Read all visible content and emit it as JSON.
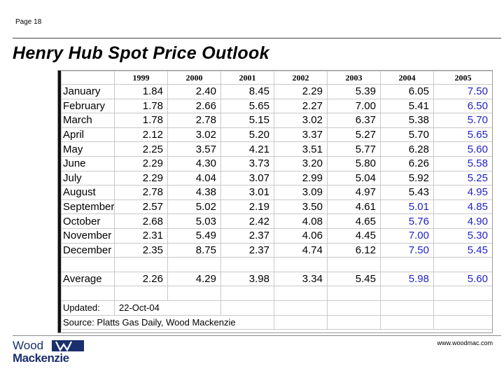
{
  "header": {
    "page_label": "Page 18",
    "title": "Henry Hub Spot Price Outlook"
  },
  "table": {
    "years": [
      "1999",
      "2000",
      "2001",
      "2002",
      "2003",
      "2004",
      "2005"
    ],
    "rows": [
      {
        "month": "January",
        "values": [
          "1.84",
          "2.40",
          "8.45",
          "2.29",
          "5.39",
          "6.05",
          "7.50"
        ],
        "blue": [
          false,
          false,
          false,
          false,
          false,
          false,
          true
        ]
      },
      {
        "month": "February",
        "values": [
          "1.78",
          "2.66",
          "5.65",
          "2.27",
          "7.00",
          "5.41",
          "6.50"
        ],
        "blue": [
          false,
          false,
          false,
          false,
          false,
          false,
          true
        ]
      },
      {
        "month": "March",
        "values": [
          "1.78",
          "2.78",
          "5.15",
          "3.02",
          "6.37",
          "5.38",
          "5.70"
        ],
        "blue": [
          false,
          false,
          false,
          false,
          false,
          false,
          true
        ]
      },
      {
        "month": "April",
        "values": [
          "2.12",
          "3.02",
          "5.20",
          "3.37",
          "5.27",
          "5.70",
          "5.65"
        ],
        "blue": [
          false,
          false,
          false,
          false,
          false,
          false,
          true
        ]
      },
      {
        "month": "May",
        "values": [
          "2.25",
          "3.57",
          "4.21",
          "3.51",
          "5.77",
          "6.28",
          "5.60"
        ],
        "blue": [
          false,
          false,
          false,
          false,
          false,
          false,
          true
        ]
      },
      {
        "month": "June",
        "values": [
          "2.29",
          "4.30",
          "3.73",
          "3.20",
          "5.80",
          "6.26",
          "5.58"
        ],
        "blue": [
          false,
          false,
          false,
          false,
          false,
          false,
          true
        ]
      },
      {
        "month": "July",
        "values": [
          "2.29",
          "4.04",
          "3.07",
          "2.99",
          "5.04",
          "5.92",
          "5.25"
        ],
        "blue": [
          false,
          false,
          false,
          false,
          false,
          false,
          true
        ]
      },
      {
        "month": "August",
        "values": [
          "2.78",
          "4.38",
          "3.01",
          "3.09",
          "4.97",
          "5.43",
          "4.95"
        ],
        "blue": [
          false,
          false,
          false,
          false,
          false,
          false,
          true
        ]
      },
      {
        "month": "September",
        "values": [
          "2.57",
          "5.02",
          "2.19",
          "3.50",
          "4.61",
          "5.01",
          "4.85"
        ],
        "blue": [
          false,
          false,
          false,
          false,
          false,
          true,
          true
        ]
      },
      {
        "month": "October",
        "values": [
          "2.68",
          "5.03",
          "2.42",
          "4.08",
          "4.65",
          "5.76",
          "4.90"
        ],
        "blue": [
          false,
          false,
          false,
          false,
          false,
          true,
          true
        ]
      },
      {
        "month": "November",
        "values": [
          "2.31",
          "5.49",
          "2.37",
          "4.06",
          "4.45",
          "7.00",
          "5.30"
        ],
        "blue": [
          false,
          false,
          false,
          false,
          false,
          true,
          true
        ]
      },
      {
        "month": "December",
        "values": [
          "2.35",
          "8.75",
          "2.37",
          "4.74",
          "6.12",
          "7.50",
          "5.45"
        ],
        "blue": [
          false,
          false,
          false,
          false,
          false,
          true,
          true
        ]
      }
    ],
    "average": {
      "label": "Average",
      "values": [
        "2.26",
        "4.29",
        "3.98",
        "3.34",
        "5.45",
        "5.98",
        "5.60"
      ],
      "blue": [
        false,
        false,
        false,
        false,
        false,
        true,
        true
      ]
    },
    "updated_label": "Updated:",
    "updated_date": "22-Oct-04",
    "source": "Source: Platts Gas Daily, Wood Mackenzie"
  },
  "footer": {
    "logo_word1": "Wood",
    "logo_word2": "Mackenzie",
    "url": "www.woodmac.com",
    "brand_color": "#1a2f6e",
    "forecast_color": "#1f1fc8"
  }
}
